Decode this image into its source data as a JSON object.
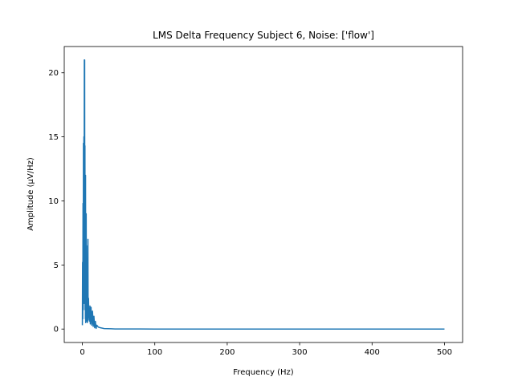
{
  "chart_data": {
    "type": "line",
    "title": "LMS Delta Frequency Subject 6, Noise: ['flow']",
    "xlabel": "Frequency (Hz)",
    "ylabel": "Amplitude (µV/Hz)",
    "xlim": [
      -25,
      525
    ],
    "ylim": [
      -1.05,
      22.05
    ],
    "x_ticks": [
      0,
      100,
      200,
      300,
      400,
      500
    ],
    "y_ticks": [
      0,
      5,
      10,
      15,
      20
    ],
    "grid": false,
    "legend": "none",
    "series": [
      {
        "color": "#1f77b4",
        "x": [
          0,
          0.3,
          0.6,
          0.9,
          1.2,
          1.5,
          1.8,
          2.1,
          2.4,
          2.7,
          3.0,
          3.2,
          3.4,
          3.6,
          3.8,
          4.0,
          4.2,
          4.4,
          4.6,
          4.8,
          5.0,
          5.3,
          5.6,
          5.9,
          6.2,
          6.5,
          6.8,
          7.1,
          7.4,
          7.7,
          8.0,
          8.5,
          9.0,
          9.5,
          10.0,
          10.5,
          11,
          12,
          13,
          14,
          15,
          16,
          17,
          18,
          19,
          20,
          22,
          25,
          30,
          35,
          40,
          45,
          50,
          60,
          80,
          100,
          150,
          200,
          300,
          400,
          500
        ],
        "y": [
          0.3,
          5.2,
          0.8,
          9.8,
          1.5,
          14.5,
          3.0,
          15.0,
          2.0,
          21.0,
          5.0,
          21.0,
          3.0,
          14.3,
          1.5,
          9.5,
          0.8,
          12.0,
          0.5,
          8.0,
          1.0,
          9.0,
          0.6,
          6.5,
          0.8,
          4.5,
          0.5,
          3.2,
          0.6,
          7.0,
          0.7,
          2.4,
          0.9,
          1.3,
          0.6,
          1.8,
          0.4,
          1.7,
          0.3,
          1.4,
          0.2,
          1.0,
          0.1,
          0.6,
          0.05,
          0.3,
          0.15,
          0.1,
          0.04,
          0.03,
          0.02,
          0.01,
          0.01,
          0.005,
          0.003,
          0.002,
          0.001,
          0.001,
          0.0,
          0.0,
          0.0
        ]
      }
    ]
  }
}
